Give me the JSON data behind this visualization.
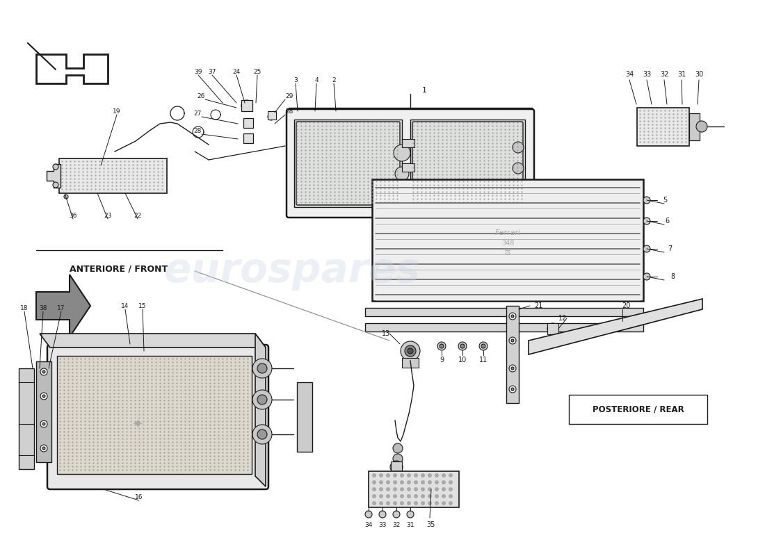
{
  "bg_color": "#ffffff",
  "lc": "#1a1a1a",
  "gray1": "#cccccc",
  "gray2": "#aaaaaa",
  "gray3": "#888888",
  "gray4": "#dddddd",
  "wm_color": "#c8d4e8",
  "front_label": "ANTERIORE / FRONT",
  "rear_label": "POSTERIORE / REAR",
  "figw": 11.0,
  "figh": 8.0,
  "dpi": 100,
  "xlim": [
    0,
    1100
  ],
  "ylim": [
    0,
    800
  ]
}
